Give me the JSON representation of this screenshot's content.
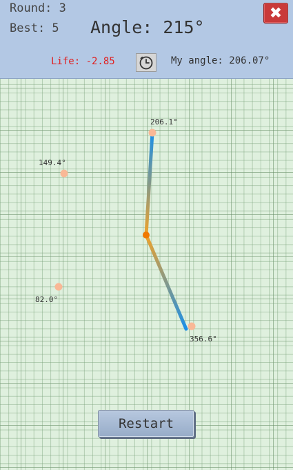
{
  "hud": {
    "round_label": "Round: 3",
    "best_label": "Best: 5",
    "target_angle_label": "Angle: 215°",
    "life_label": "Life: -2.85",
    "my_angle_label": "My angle: 206.07°",
    "close_icon": "close-x-icon",
    "clock_icon": "clock-icon"
  },
  "game": {
    "arm_segments": [
      {
        "from": "center",
        "to": "206.1°",
        "colors": [
          "#f0a22a",
          "#1a8fe8"
        ]
      },
      {
        "from": "center",
        "to": "356.6°",
        "colors": [
          "#f0a22a",
          "#1a8fe8"
        ]
      }
    ],
    "targets": [
      {
        "label": "206.1°"
      },
      {
        "label": "149.4°"
      },
      {
        "label": "82.0°"
      },
      {
        "label": "356.6°"
      }
    ],
    "pivot_color": "#f07800",
    "target_color": "#f9b896"
  },
  "restart_label": "Restart"
}
